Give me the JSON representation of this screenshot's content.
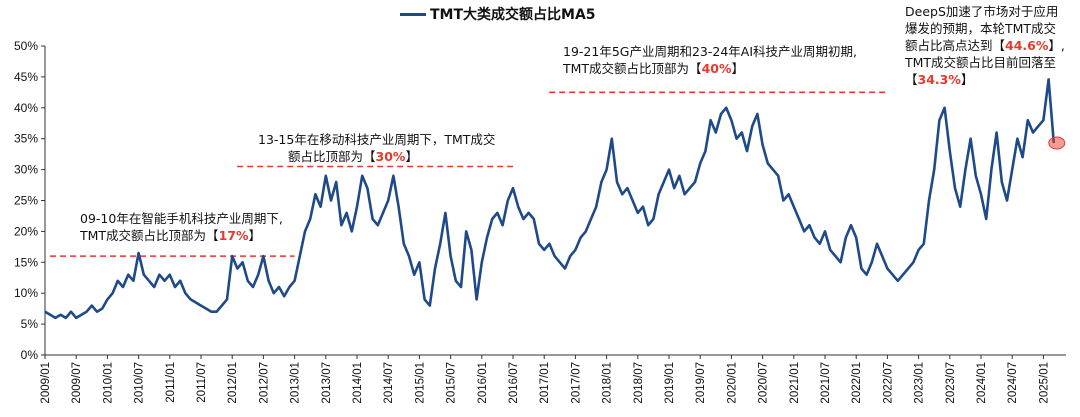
{
  "chart_data": {
    "type": "line",
    "title": "",
    "legend": "top",
    "series": [
      {
        "name": "TMT大类成交额占比MA5",
        "color": "#1f4a8a"
      }
    ],
    "ylim": [
      0,
      50
    ],
    "yticks": [
      "0%",
      "5%",
      "10%",
      "15%",
      "20%",
      "25%",
      "30%",
      "35%",
      "40%",
      "45%",
      "50%"
    ],
    "xticks": [
      "2009/01",
      "2009/07",
      "2010/01",
      "2010/07",
      "2011/01",
      "2011/07",
      "2012/01",
      "2012/07",
      "2013/01",
      "2013/07",
      "2014/01",
      "2014/07",
      "2015/01",
      "2015/07",
      "2016/01",
      "2016/07",
      "2017/01",
      "2017/07",
      "2018/01",
      "2018/07",
      "2019/01",
      "2019/07",
      "2020/01",
      "2020/07",
      "2021/01",
      "2021/07",
      "2022/01",
      "2022/07",
      "2023/01",
      "2023/07",
      "2024/01",
      "2024/07",
      "2025/01"
    ],
    "start": "2009/01",
    "frequency": "monthly",
    "values": [
      7,
      6.5,
      6,
      6.5,
      6,
      7,
      6,
      6.5,
      7,
      8,
      7,
      7.5,
      9,
      10,
      12,
      11,
      13,
      12,
      16.5,
      13,
      12,
      11,
      13,
      12,
      13,
      11,
      12,
      10,
      9,
      8.5,
      8,
      7.5,
      7,
      7,
      8,
      9,
      16,
      14,
      15,
      12,
      11,
      13,
      16,
      12,
      10,
      11,
      9.5,
      11,
      12,
      16,
      20,
      22,
      26,
      24,
      29,
      25,
      28,
      21,
      23,
      20,
      24,
      29,
      27,
      22,
      21,
      23,
      25,
      29,
      24,
      18,
      16,
      13,
      15,
      9,
      8,
      14,
      18,
      23,
      16,
      12,
      11,
      20,
      17,
      9,
      15,
      19,
      22,
      23,
      21,
      25,
      27,
      24,
      22,
      23,
      22,
      18,
      17,
      18,
      16,
      15,
      14,
      16,
      17,
      19,
      20,
      22,
      24,
      28,
      30,
      35,
      28,
      26,
      27,
      25,
      23,
      24,
      21,
      22,
      26,
      28,
      30,
      27,
      29,
      26,
      27,
      28,
      31,
      33,
      38,
      36,
      39,
      40,
      38,
      35,
      36,
      33,
      37,
      39,
      34,
      31,
      30,
      29,
      25,
      26,
      24,
      22,
      20,
      21,
      19,
      18,
      20,
      17,
      16,
      15,
      19,
      21,
      19,
      14,
      13,
      15,
      18,
      16,
      14,
      13,
      12,
      13,
      14,
      15,
      17,
      18,
      25,
      30,
      38,
      40,
      33,
      27,
      24,
      30,
      35,
      29,
      26,
      22,
      30,
      36,
      28,
      25,
      30,
      35,
      32,
      38,
      36,
      37,
      38,
      44.6,
      34.3
    ],
    "reference_lines": [
      {
        "from": "2009/01",
        "to": "2013/01",
        "y": 16,
        "color": "#e8392d"
      },
      {
        "from": "2012/01",
        "to": "2016/07",
        "y": 30.5,
        "color": "#e8392d"
      },
      {
        "from": "2017/01",
        "to": "2022/07",
        "y": 42.5,
        "color": "#e8392d"
      }
    ],
    "highlight": {
      "date": "2025/03",
      "value": 34.3,
      "color": "#e8392d"
    },
    "annotations": [
      {
        "l1": "09-10年在智能手机科技产业周期下,",
        "l2a": "TMT成交额占比顶部为【",
        "l2v": "17%",
        "l2b": "】"
      },
      {
        "l1": "13-15年在移动科技产业周期下，TMT成交",
        "l2a": "额占比顶部为【",
        "l2v": "30%",
        "l2b": "】"
      },
      {
        "l1": "19-21年5G产业周期和23-24年AI科技产业周期初期,",
        "l2a": "TMT成交额占比顶部为【",
        "l2v": "40%",
        "l2b": "】"
      },
      {
        "l1": "DeepS加速了市场对于应用",
        "l2": "爆发的预期，本轮TMT成交",
        "l3a": "额占比高点达到【",
        "l3v": "44.6%",
        "l3b": "】,",
        "l4": "TMT成交额占比目前回落至",
        "l5a": "【",
        "l5v": "34.3%",
        "l5b": "】"
      }
    ]
  }
}
